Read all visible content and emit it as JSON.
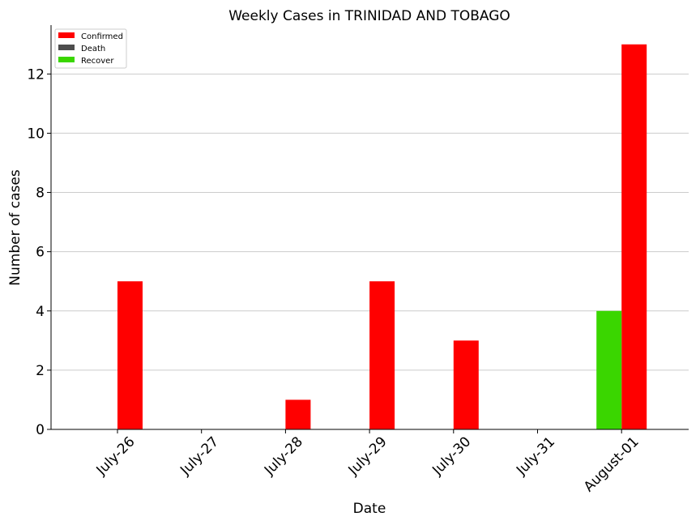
{
  "chart_data": {
    "type": "bar",
    "title": "Weekly Cases in TRINIDAD AND TOBAGO",
    "xlabel": "Date",
    "ylabel": "Number of cases",
    "categories": [
      "July-26",
      "July-27",
      "July-28",
      "July-29",
      "July-30",
      "July-31",
      "August-01"
    ],
    "series": [
      {
        "name": "Confirmed",
        "color": "#ff0000",
        "values": [
          5,
          0,
          1,
          5,
          3,
          0,
          13
        ]
      },
      {
        "name": "Death",
        "color": "#4d4d4d",
        "values": [
          0,
          0,
          0,
          0,
          0,
          0,
          0
        ]
      },
      {
        "name": "Recover",
        "color": "#3ad600",
        "values": [
          0,
          0,
          0,
          0,
          0,
          0,
          4
        ]
      }
    ],
    "ylim": [
      0,
      13.65
    ],
    "yticks": [
      0,
      2,
      4,
      6,
      8,
      10,
      12
    ],
    "grid": "horizontal",
    "legend": "top-left"
  }
}
